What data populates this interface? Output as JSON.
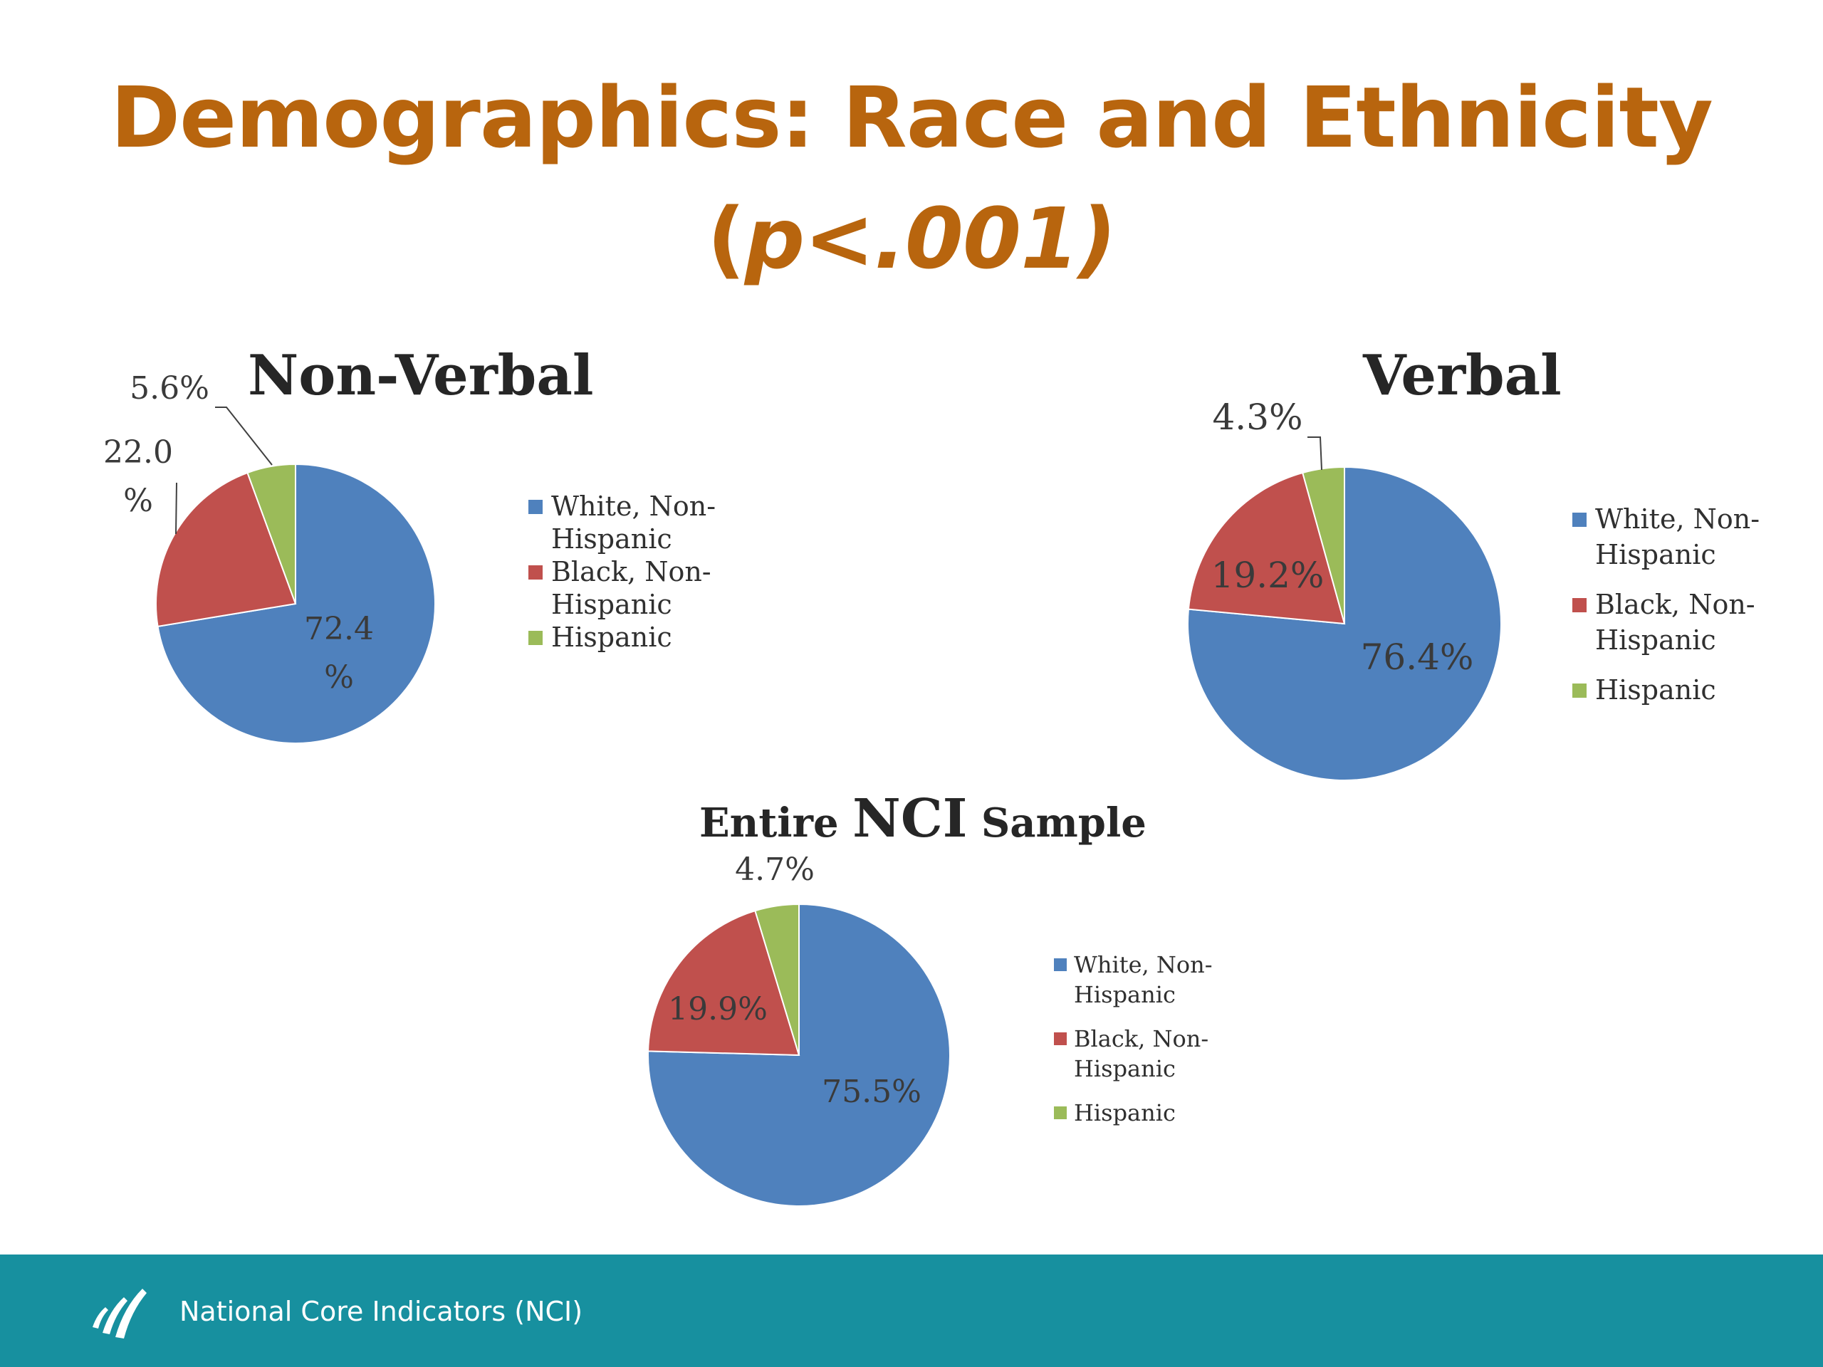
{
  "slide": {
    "title_line1": "Demographics: Race and Ethnicity",
    "title_open_paren": "(",
    "title_italic": "p<.001)",
    "footer_text": "National Core Indicators (NCI)"
  },
  "colors": {
    "white_non_hispanic": "#4f81bd",
    "black_non_hispanic": "#c0504d",
    "hispanic": "#9bbb59",
    "title": "#b8650e",
    "footer": "#17909f"
  },
  "chart_data": [
    {
      "id": "non-verbal",
      "type": "pie",
      "title": "Non-Verbal",
      "categories": [
        "White, Non-Hispanic",
        "Black, Non-Hispanic",
        "Hispanic"
      ],
      "values": [
        72.4,
        22.0,
        5.6
      ],
      "labels": [
        "72.4 %",
        "22.0 %",
        "5.6%"
      ],
      "legend_lines": [
        [
          "White, Non-",
          "Hispanic"
        ],
        [
          "Black, Non-",
          "Hispanic"
        ],
        [
          "Hispanic"
        ]
      ],
      "legend": "right"
    },
    {
      "id": "verbal",
      "type": "pie",
      "title": "Verbal",
      "categories": [
        "White, Non-Hispanic",
        "Black, Non-Hispanic",
        "Hispanic"
      ],
      "values": [
        76.4,
        19.2,
        4.3
      ],
      "labels": [
        "76.4%",
        "19.2%",
        "4.3%"
      ],
      "legend_lines": [
        [
          "White, Non-",
          "Hispanic"
        ],
        [
          "Black, Non-",
          "Hispanic"
        ],
        [
          "Hispanic"
        ]
      ],
      "legend": "right"
    },
    {
      "id": "entire-sample",
      "type": "pie",
      "title_parts": [
        "Entire ",
        "NCI",
        " Sample"
      ],
      "categories": [
        "White, Non-Hispanic",
        "Black, Non-Hispanic",
        "Hispanic"
      ],
      "values": [
        75.5,
        19.9,
        4.7
      ],
      "labels": [
        "75.5%",
        "19.9%",
        "4.7%"
      ],
      "legend_lines": [
        [
          "White, Non-",
          "Hispanic"
        ],
        [
          "Black, Non-",
          "Hispanic"
        ],
        [
          "Hispanic"
        ]
      ],
      "legend": "right"
    }
  ]
}
